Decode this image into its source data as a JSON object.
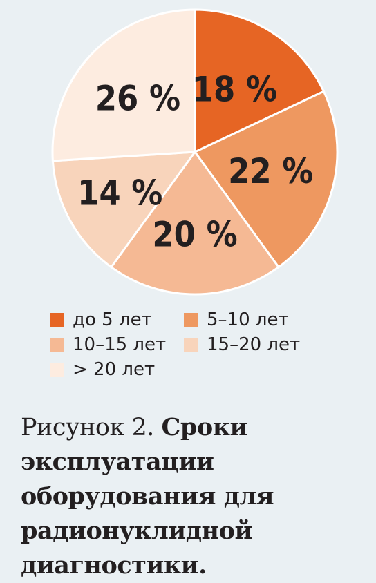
{
  "chart_data": {
    "type": "pie",
    "categories": [
      "до 5 лет",
      "5–10 лет",
      "10–15 лет",
      "15–20 лет",
      "> 20 лет"
    ],
    "values": [
      18,
      22,
      20,
      14,
      26
    ],
    "value_labels": [
      "18 %",
      "22 %",
      "20 %",
      "14 %",
      "26 %"
    ],
    "colors": [
      "#e66524",
      "#ee9860",
      "#f5b994",
      "#f8d4bb",
      "#fdece0"
    ],
    "start": "12 o'clock",
    "direction": "clockwise",
    "legend_position": "bottom"
  },
  "legend": {
    "items": [
      {
        "label": "до 5 лет",
        "color": "#e66524"
      },
      {
        "label": "5–10 лет",
        "color": "#ee9860"
      },
      {
        "label": "10–15 лет",
        "color": "#f5b994"
      },
      {
        "label": "15–20 лет",
        "color": "#f8d4bb"
      },
      {
        "label": "> 20 лет",
        "color": "#fdece0"
      }
    ]
  },
  "caption": {
    "figure_label": "Рисунок 2.",
    "title": "Сроки эксплуатации оборудования для радионуклидной диагностики."
  }
}
